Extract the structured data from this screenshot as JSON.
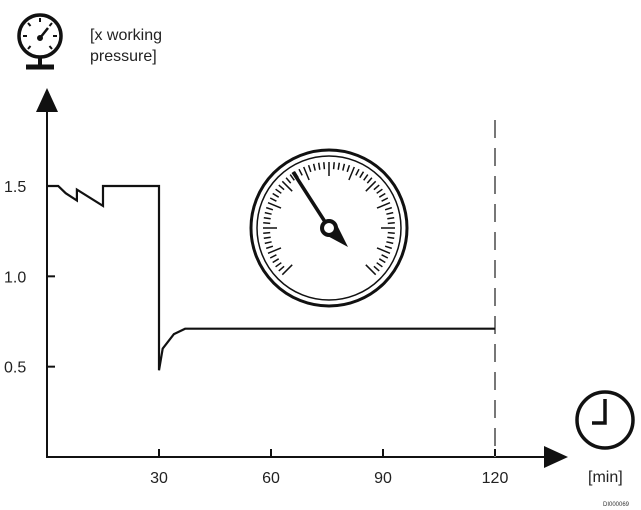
{
  "chart_data": {
    "type": "line",
    "ylabel_line1": "[x working",
    "ylabel_line2": "pressure]",
    "xlabel": "[min]",
    "xlim": [
      0,
      120
    ],
    "ylim": [
      0,
      1.8
    ],
    "x_ticks": [
      30,
      60,
      90,
      120
    ],
    "x_tick_labels": [
      "30",
      "60",
      "90",
      "120"
    ],
    "y_ticks": [
      0.5,
      1.0,
      1.5
    ],
    "y_tick_labels": [
      "0.5",
      "1.0",
      "1.5"
    ],
    "series": [
      {
        "points": [
          {
            "x": 0,
            "y": 1.5
          },
          {
            "x": 3,
            "y": 1.5
          },
          {
            "x": 5,
            "y": 1.46
          },
          {
            "x": 8,
            "y": 1.42
          },
          {
            "x": 8,
            "y": 1.48
          },
          {
            "x": 15,
            "y": 1.39
          },
          {
            "x": 15,
            "y": 1.5
          },
          {
            "x": 30,
            "y": 1.5
          },
          {
            "x": 30,
            "y": 0.48
          },
          {
            "x": 31,
            "y": 0.6
          },
          {
            "x": 34,
            "y": 0.68
          },
          {
            "x": 37,
            "y": 0.71
          },
          {
            "x": 40,
            "y": 0.71
          },
          {
            "x": 120,
            "y": 0.71
          }
        ]
      }
    ],
    "vertical_marker_x": 120,
    "icons": [
      "pressure-gauge-icon",
      "pressure-dial-icon",
      "clock-icon"
    ],
    "line_color": "#111111",
    "marker_color": "#777777"
  },
  "doc_code": "DI000069"
}
